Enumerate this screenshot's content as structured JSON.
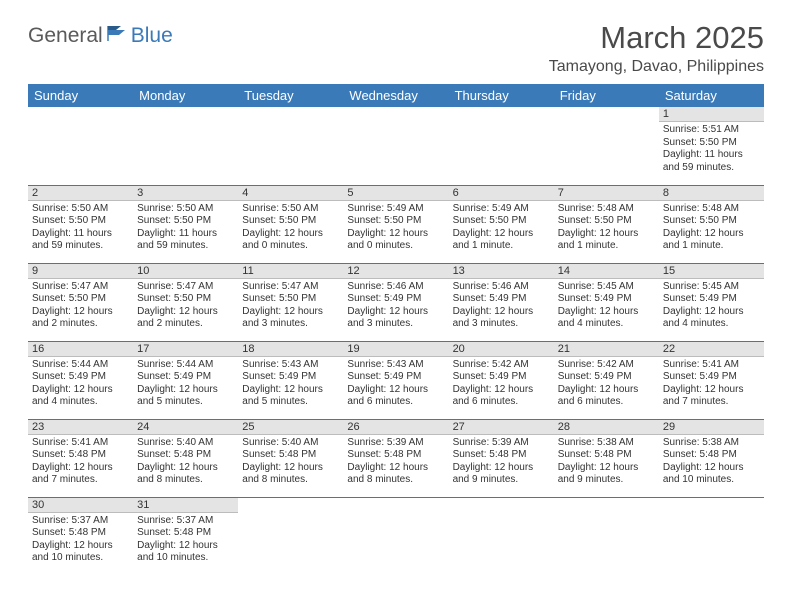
{
  "brand": {
    "part1": "General",
    "part2": "Blue"
  },
  "title": "March 2025",
  "location": "Tamayong, Davao, Philippines",
  "colors": {
    "header_bg": "#3a7ab8",
    "header_text": "#ffffff",
    "daynum_bg": "#e4e4e4",
    "daynum_border": "#bcbcbc",
    "row_border": "#3a7ab8",
    "text": "#333333",
    "brand_gray": "#5a5a5a",
    "brand_blue": "#3a7ab8"
  },
  "weekdays": [
    "Sunday",
    "Monday",
    "Tuesday",
    "Wednesday",
    "Thursday",
    "Friday",
    "Saturday"
  ],
  "weeks": [
    [
      null,
      null,
      null,
      null,
      null,
      null,
      {
        "n": "1",
        "sr": "5:51 AM",
        "ss": "5:50 PM",
        "dl": "11 hours and 59 minutes."
      }
    ],
    [
      {
        "n": "2",
        "sr": "5:50 AM",
        "ss": "5:50 PM",
        "dl": "11 hours and 59 minutes."
      },
      {
        "n": "3",
        "sr": "5:50 AM",
        "ss": "5:50 PM",
        "dl": "11 hours and 59 minutes."
      },
      {
        "n": "4",
        "sr": "5:50 AM",
        "ss": "5:50 PM",
        "dl": "12 hours and 0 minutes."
      },
      {
        "n": "5",
        "sr": "5:49 AM",
        "ss": "5:50 PM",
        "dl": "12 hours and 0 minutes."
      },
      {
        "n": "6",
        "sr": "5:49 AM",
        "ss": "5:50 PM",
        "dl": "12 hours and 1 minute."
      },
      {
        "n": "7",
        "sr": "5:48 AM",
        "ss": "5:50 PM",
        "dl": "12 hours and 1 minute."
      },
      {
        "n": "8",
        "sr": "5:48 AM",
        "ss": "5:50 PM",
        "dl": "12 hours and 1 minute."
      }
    ],
    [
      {
        "n": "9",
        "sr": "5:47 AM",
        "ss": "5:50 PM",
        "dl": "12 hours and 2 minutes."
      },
      {
        "n": "10",
        "sr": "5:47 AM",
        "ss": "5:50 PM",
        "dl": "12 hours and 2 minutes."
      },
      {
        "n": "11",
        "sr": "5:47 AM",
        "ss": "5:50 PM",
        "dl": "12 hours and 3 minutes."
      },
      {
        "n": "12",
        "sr": "5:46 AM",
        "ss": "5:49 PM",
        "dl": "12 hours and 3 minutes."
      },
      {
        "n": "13",
        "sr": "5:46 AM",
        "ss": "5:49 PM",
        "dl": "12 hours and 3 minutes."
      },
      {
        "n": "14",
        "sr": "5:45 AM",
        "ss": "5:49 PM",
        "dl": "12 hours and 4 minutes."
      },
      {
        "n": "15",
        "sr": "5:45 AM",
        "ss": "5:49 PM",
        "dl": "12 hours and 4 minutes."
      }
    ],
    [
      {
        "n": "16",
        "sr": "5:44 AM",
        "ss": "5:49 PM",
        "dl": "12 hours and 4 minutes."
      },
      {
        "n": "17",
        "sr": "5:44 AM",
        "ss": "5:49 PM",
        "dl": "12 hours and 5 minutes."
      },
      {
        "n": "18",
        "sr": "5:43 AM",
        "ss": "5:49 PM",
        "dl": "12 hours and 5 minutes."
      },
      {
        "n": "19",
        "sr": "5:43 AM",
        "ss": "5:49 PM",
        "dl": "12 hours and 6 minutes."
      },
      {
        "n": "20",
        "sr": "5:42 AM",
        "ss": "5:49 PM",
        "dl": "12 hours and 6 minutes."
      },
      {
        "n": "21",
        "sr": "5:42 AM",
        "ss": "5:49 PM",
        "dl": "12 hours and 6 minutes."
      },
      {
        "n": "22",
        "sr": "5:41 AM",
        "ss": "5:49 PM",
        "dl": "12 hours and 7 minutes."
      }
    ],
    [
      {
        "n": "23",
        "sr": "5:41 AM",
        "ss": "5:48 PM",
        "dl": "12 hours and 7 minutes."
      },
      {
        "n": "24",
        "sr": "5:40 AM",
        "ss": "5:48 PM",
        "dl": "12 hours and 8 minutes."
      },
      {
        "n": "25",
        "sr": "5:40 AM",
        "ss": "5:48 PM",
        "dl": "12 hours and 8 minutes."
      },
      {
        "n": "26",
        "sr": "5:39 AM",
        "ss": "5:48 PM",
        "dl": "12 hours and 8 minutes."
      },
      {
        "n": "27",
        "sr": "5:39 AM",
        "ss": "5:48 PM",
        "dl": "12 hours and 9 minutes."
      },
      {
        "n": "28",
        "sr": "5:38 AM",
        "ss": "5:48 PM",
        "dl": "12 hours and 9 minutes."
      },
      {
        "n": "29",
        "sr": "5:38 AM",
        "ss": "5:48 PM",
        "dl": "12 hours and 10 minutes."
      }
    ],
    [
      {
        "n": "30",
        "sr": "5:37 AM",
        "ss": "5:48 PM",
        "dl": "12 hours and 10 minutes."
      },
      {
        "n": "31",
        "sr": "5:37 AM",
        "ss": "5:48 PM",
        "dl": "12 hours and 10 minutes."
      },
      null,
      null,
      null,
      null,
      null
    ]
  ],
  "labels": {
    "sunrise": "Sunrise:",
    "sunset": "Sunset:",
    "daylight": "Daylight:"
  }
}
